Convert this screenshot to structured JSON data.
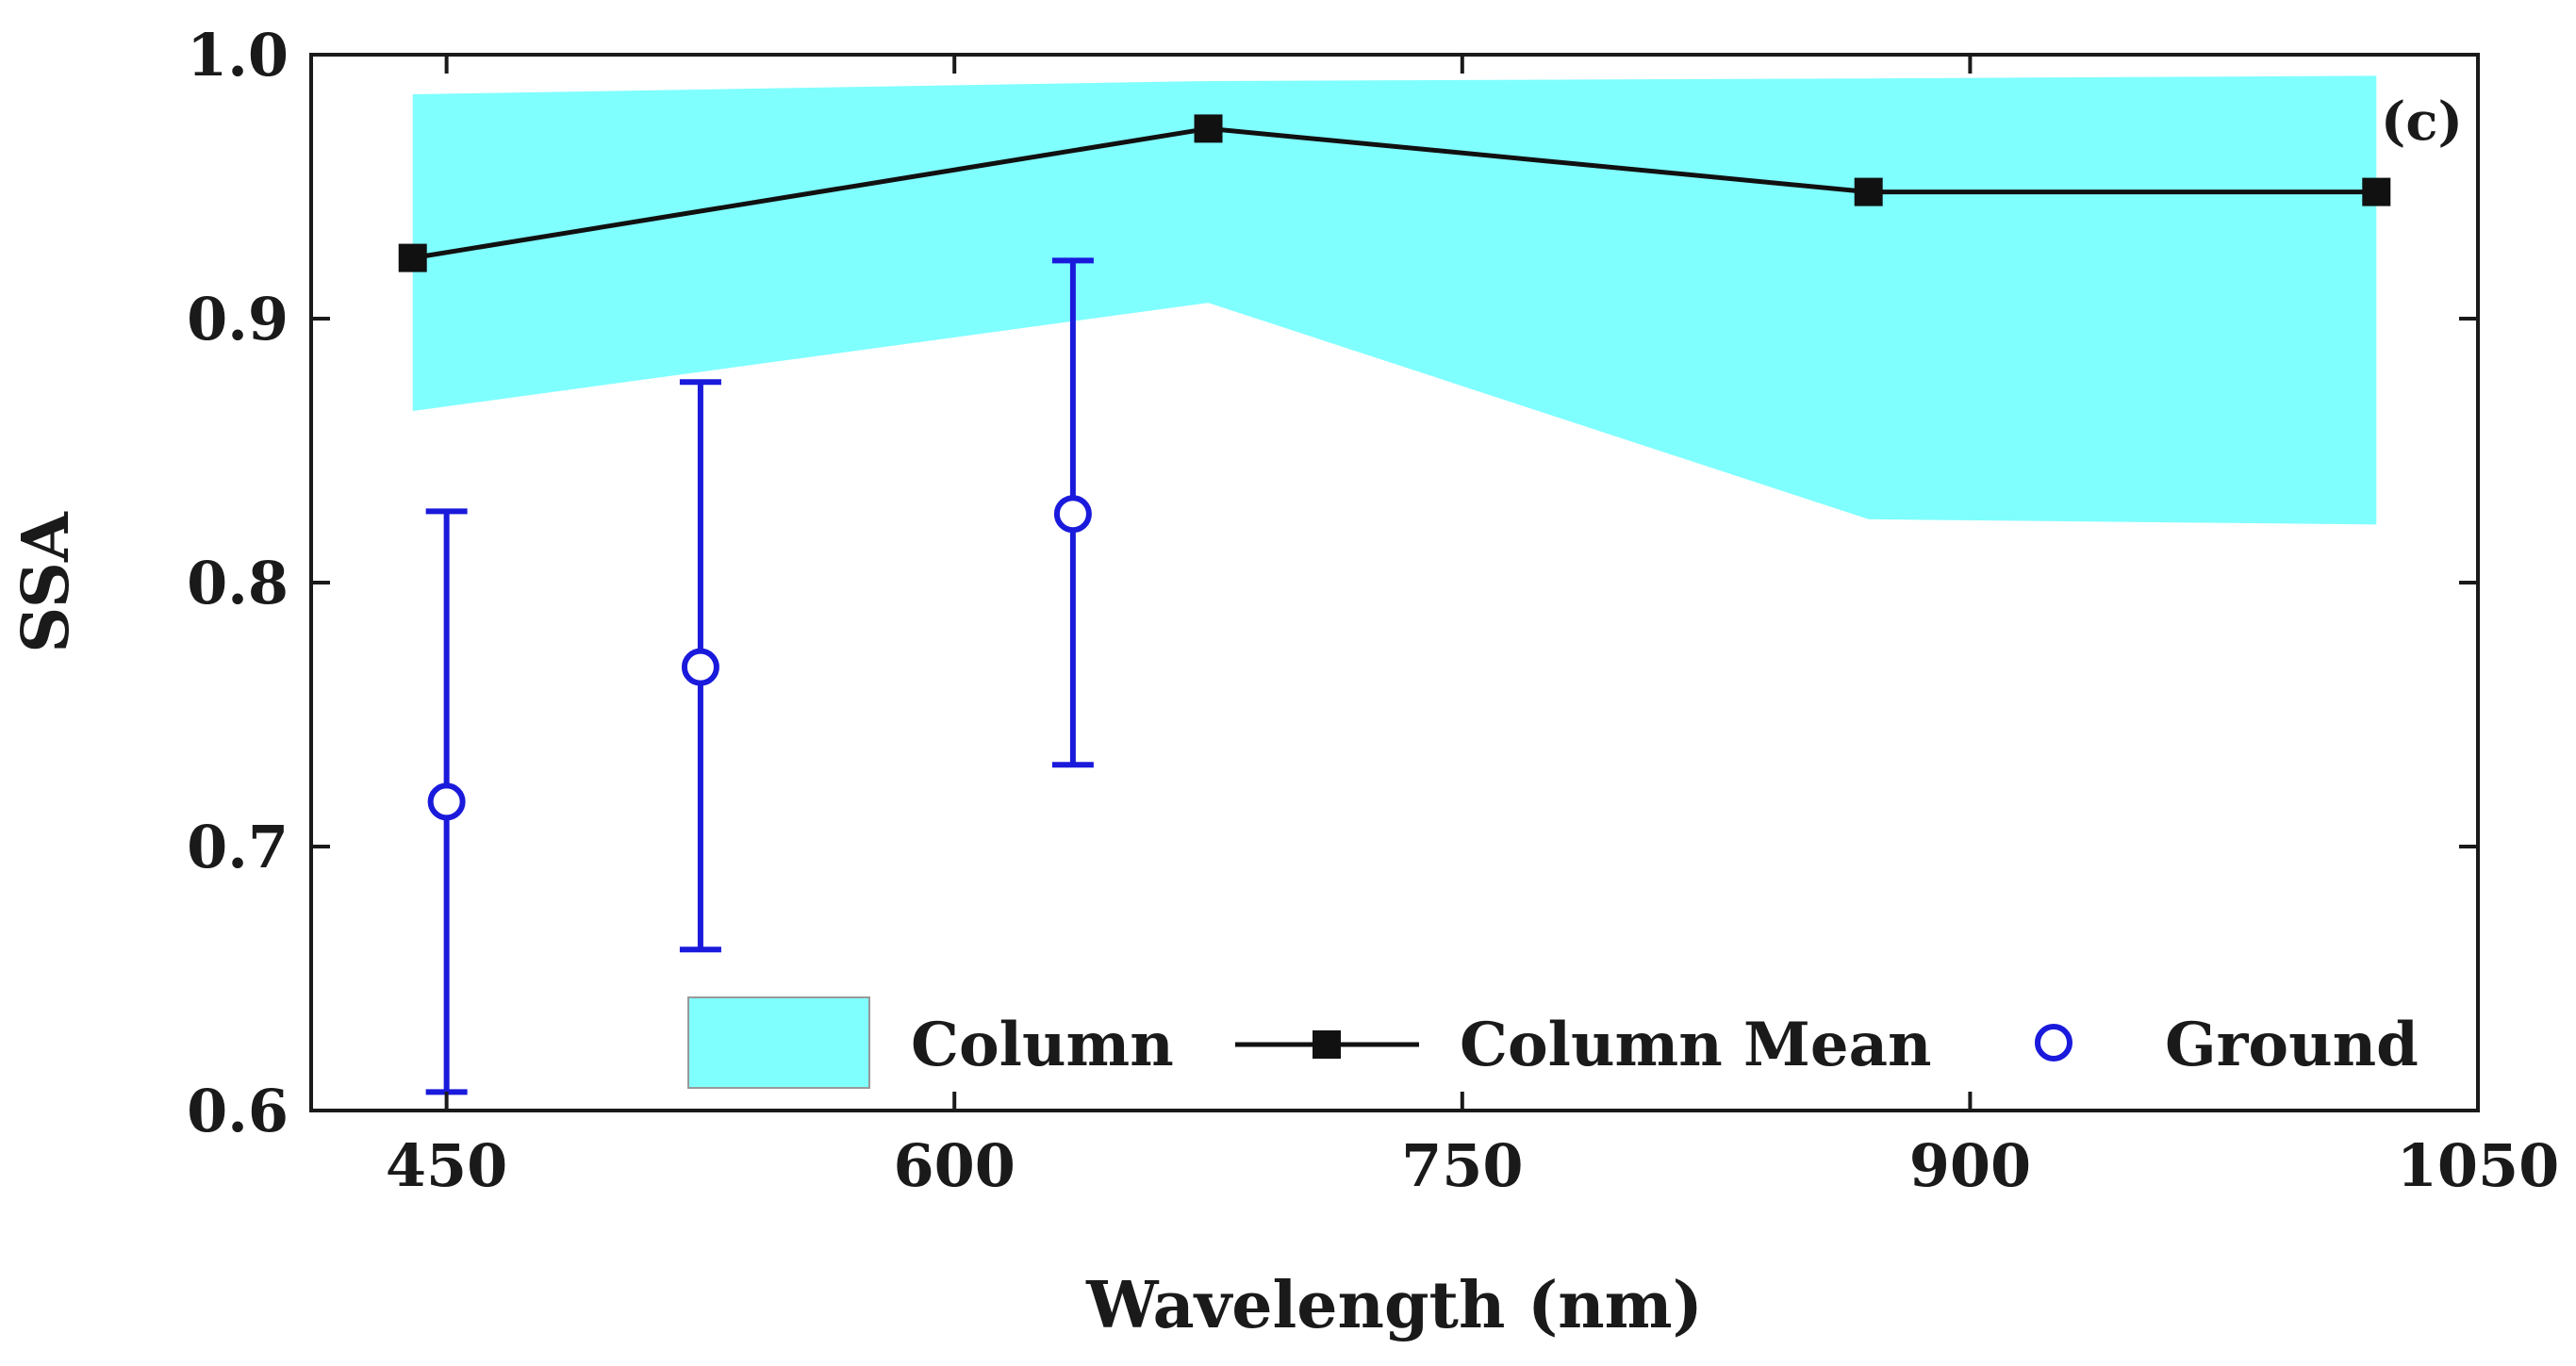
{
  "chart_data": {
    "type": "line",
    "panel_label": "(c)",
    "xlabel": "Wavelength (nm)",
    "ylabel": "SSA",
    "xlim": [
      410,
      1050
    ],
    "ylim": [
      0.6,
      1.0
    ],
    "xticks": [
      450,
      600,
      750,
      900,
      1050
    ],
    "yticks": [
      0.6,
      0.7,
      0.8,
      0.9,
      1.0
    ],
    "xtick_labels": [
      "450",
      "600",
      "750",
      "900",
      "1050"
    ],
    "ytick_labels": [
      "0.6",
      "0.7",
      "0.8",
      "0.9",
      "1.0"
    ],
    "colors": {
      "band": "#80ffff",
      "mean": "#111111",
      "ground": "#1a1adc",
      "axis": "#1a1a1a"
    },
    "series": [
      {
        "name": "Column",
        "kind": "band",
        "x": [
          440,
          675,
          870,
          1020
        ],
        "upper": [
          0.985,
          0.99,
          0.991,
          0.992
        ],
        "lower": [
          0.865,
          0.906,
          0.824,
          0.822
        ]
      },
      {
        "name": "Column Mean",
        "kind": "line-square",
        "x": [
          440,
          675,
          870,
          1020
        ],
        "y": [
          0.923,
          0.972,
          0.948,
          0.948
        ]
      },
      {
        "name": "Ground",
        "kind": "circle-errorbar",
        "x": [
          450,
          525,
          635
        ],
        "y": [
          0.717,
          0.768,
          0.826
        ],
        "ymin": [
          0.607,
          0.661,
          0.731
        ],
        "ymax": [
          0.827,
          0.876,
          0.922
        ]
      }
    ],
    "legend": [
      {
        "label": "Column",
        "marker": "band"
      },
      {
        "label": "Column Mean",
        "marker": "line-square"
      },
      {
        "label": "Ground",
        "marker": "circle"
      }
    ],
    "legend_position": "bottom-right, inside plot"
  }
}
